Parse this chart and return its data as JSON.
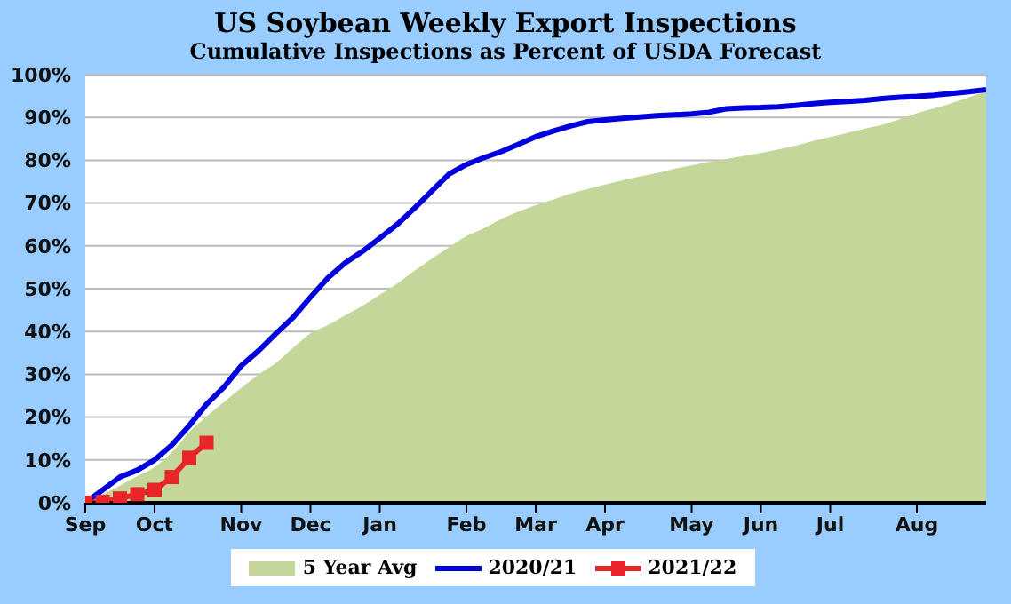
{
  "chart_data": {
    "type": "line",
    "title": "US Soybean Weekly Export Inspections",
    "subtitle": "Cumulative Inspections as Percent of USDA Forecast",
    "categories": [
      "Sep",
      null,
      null,
      null,
      "Oct",
      null,
      null,
      null,
      null,
      "Nov",
      null,
      null,
      null,
      "Dec",
      null,
      null,
      null,
      "Jan",
      null,
      null,
      null,
      null,
      "Feb",
      null,
      null,
      null,
      "Mar",
      null,
      null,
      null,
      "Apr",
      null,
      null,
      null,
      null,
      "May",
      null,
      null,
      null,
      "Jun",
      null,
      null,
      null,
      "Jul",
      null,
      null,
      null,
      null,
      "Aug",
      null,
      null,
      null,
      null
    ],
    "ylim": [
      0,
      100
    ],
    "yticks": [
      {
        "value": 0,
        "label": "0%"
      },
      {
        "value": 10,
        "label": "10%"
      },
      {
        "value": 20,
        "label": "20%"
      },
      {
        "value": 30,
        "label": "30%"
      },
      {
        "value": 40,
        "label": "40%"
      },
      {
        "value": 50,
        "label": "50%"
      },
      {
        "value": 60,
        "label": "60%"
      },
      {
        "value": 70,
        "label": "70%"
      },
      {
        "value": 80,
        "label": "80%"
      },
      {
        "value": 90,
        "label": "90%"
      },
      {
        "value": 100,
        "label": "100%"
      }
    ],
    "grid": "y",
    "legend": "bottom",
    "series": [
      {
        "name": "5 Year Avg",
        "type": "area",
        "color": "#c4d79b",
        "values": [
          0,
          2,
          4,
          6.2,
          8.3,
          11.8,
          16.5,
          20.2,
          23.5,
          26.8,
          30,
          32.7,
          36.2,
          39.6,
          41.5,
          43.8,
          46,
          48.6,
          51.2,
          54.2,
          57,
          59.7,
          62.3,
          64.1,
          66.3,
          68,
          69.5,
          70.8,
          72.2,
          73.3,
          74.3,
          75.3,
          76.2,
          77,
          78,
          78.8,
          79.6,
          80.3,
          81,
          81.7,
          82.5,
          83.4,
          84.5,
          85.4,
          86.4,
          87.4,
          88.3,
          89.6,
          91,
          92.1,
          93.3,
          94.7,
          96
        ]
      },
      {
        "name": "2020/21",
        "color": "#0000dd",
        "marker": "none",
        "values": [
          0,
          3,
          6,
          7.6,
          10,
          13.5,
          18,
          23,
          27,
          32,
          35.5,
          39.5,
          43.3,
          48,
          52.5,
          56,
          58.7,
          61.8,
          65,
          68.8,
          72.8,
          76.8,
          79,
          80.6,
          82,
          83.7,
          85.5,
          86.8,
          88,
          89,
          89.4,
          89.8,
          90.1,
          90.4,
          90.6,
          90.8,
          91.2,
          92,
          92.2,
          92.3,
          92.5,
          92.8,
          93.2,
          93.5,
          93.7,
          94,
          94.4,
          94.7,
          94.9,
          95.2,
          95.6,
          96,
          96.5
        ]
      },
      {
        "name": "2021/22",
        "color": "#e8262a",
        "marker": "square",
        "values": [
          0,
          0.2,
          1,
          2,
          3,
          6,
          10.5,
          14,
          null,
          null,
          null,
          null,
          null,
          null,
          null,
          null,
          null,
          null,
          null,
          null,
          null,
          null,
          null,
          null,
          null,
          null,
          null,
          null,
          null,
          null,
          null,
          null,
          null,
          null,
          null,
          null,
          null,
          null,
          null,
          null,
          null,
          null,
          null,
          null,
          null,
          null,
          null,
          null,
          null,
          null,
          null,
          null,
          null
        ]
      }
    ]
  }
}
